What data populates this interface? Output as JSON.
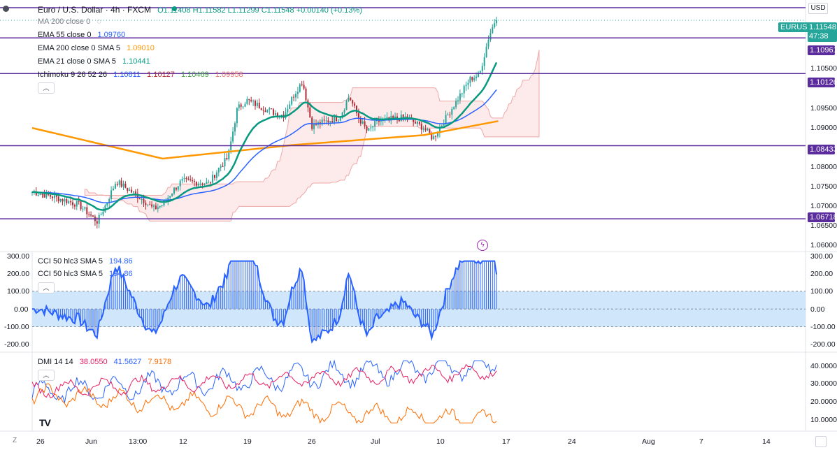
{
  "header": {
    "symbol_title": "Euro / U.S. Dollar · 4h · FXCM",
    "ohlc": "O1.11408 H1.11582 L1.11299 C1.11548 +0.00140 (+0.13%)",
    "currency": "USD"
  },
  "indicators": {
    "ma200": "MA 200 close 0",
    "ema55_label": "EMA 55 close 0",
    "ema55_value": "1.09760",
    "ema200_label": "EMA 200 close 0 SMA 5",
    "ema200_value": "1.09010",
    "ema21_label": "EMA 21 close 0 SMA 5",
    "ema21_value": "1.10441",
    "ichimoku_label": "Ichimoku 9 26 52 26",
    "ichimoku_values": [
      "1.10811",
      "1.10127",
      "1.10469",
      "1.09958"
    ],
    "cci_label_1": "CCI 50 hlc3 SMA 5",
    "cci_value_1": "194.86",
    "cci_label_2": "CCI 50 hlc3 SMA 5",
    "cci_value_2": "194.86",
    "dmi_label": "DMI 14 14",
    "dmi_values": [
      "38.0550",
      "41.5627",
      "7.9178"
    ]
  },
  "price_tags": {
    "symbol": "EURUSD",
    "last": "1.11548",
    "countdown": "47:38",
    "levels": [
      "1.10961",
      "1.10126",
      "1.08433",
      "1.06718"
    ]
  },
  "price_axis": [
    "1.10500",
    "1.10000",
    "1.09500",
    "1.09000",
    "1.08500",
    "1.08000",
    "1.07500",
    "1.07000",
    "1.06500",
    "1.06000"
  ],
  "cci_axis": [
    "300.00",
    "200.00",
    "100.00",
    "0.00",
    "-100.00",
    "-200.00"
  ],
  "dmi_axis": [
    "40.0000",
    "30.0000",
    "20.0000",
    "10.0000"
  ],
  "time_axis": [
    "26",
    "Jun",
    "13:00",
    "12",
    "19",
    "26",
    "Jul",
    "10",
    "17",
    "24",
    "Aug",
    "7",
    "14"
  ],
  "chart_data": {
    "type": "line",
    "title": "Euro / U.S. Dollar · 4h · FXCM",
    "y_unit": "USD",
    "horizontal_levels": [
      1.10961,
      1.10126,
      1.08433,
      1.06718
    ],
    "price_range": [
      1.0595,
      1.1185
    ],
    "close_path": [
      [
        "May 24",
        1.0735
      ],
      [
        "May 26",
        1.0725
      ],
      [
        "May 29",
        1.0705
      ],
      [
        "May 31",
        1.0665
      ],
      [
        "Jun 1",
        1.071
      ],
      [
        "Jun 2",
        1.076
      ],
      [
        "Jun 5",
        1.0715
      ],
      [
        "Jun 6",
        1.0695
      ],
      [
        "Jun 7",
        1.0705
      ],
      [
        "Jun 8",
        1.0735
      ],
      [
        "Jun 9",
        1.076
      ],
      [
        "Jun 12",
        1.0755
      ],
      [
        "Jun 13",
        1.079
      ],
      [
        "Jun 14",
        1.0815
      ],
      [
        "Jun 15",
        1.093
      ],
      [
        "Jun 16",
        1.095
      ],
      [
        "Jun 19",
        1.092
      ],
      [
        "Jun 20",
        1.0915
      ],
      [
        "Jun 21",
        1.096
      ],
      [
        "Jun 22",
        1.0995
      ],
      [
        "Jun 23",
        1.089
      ],
      [
        "Jun 26",
        1.091
      ],
      [
        "Jun 27",
        1.096
      ],
      [
        "Jun 28",
        1.091
      ],
      [
        "Jun 29",
        1.0875
      ],
      [
        "Jun 30",
        1.09
      ],
      [
        "Jul 3",
        1.091
      ],
      [
        "Jul 5",
        1.0885
      ],
      [
        "Jul 6",
        1.086
      ],
      [
        "Jul 7",
        1.0895
      ],
      [
        "Jul 10",
        1.1
      ],
      [
        "Jul 11",
        1.101
      ],
      [
        "Jul 12",
        1.11
      ],
      [
        "Jul 13",
        1.1155
      ]
    ],
    "ema200_path": [
      [
        "May 24",
        1.0885
      ],
      [
        "Jun 7",
        1.0813
      ],
      [
        "Jun 21",
        1.0845
      ],
      [
        "Jul 5",
        1.0868
      ],
      [
        "Jul 13",
        1.0901
      ]
    ],
    "cci": {
      "last": 194.86,
      "band": [
        -100,
        100
      ],
      "range": [
        -200,
        300
      ]
    },
    "dmi": {
      "adx": 38.055,
      "plus_di": 41.5627,
      "minus_di": 7.9178
    }
  },
  "colors": {
    "bull": "#26a69a",
    "bear": "#b22833",
    "ema200": "#ff9800",
    "ema55": "#2962ff",
    "ema21": "#089981",
    "level": "#5b2c9e",
    "cci": "#2962ff",
    "cci_band": "#cfe6fb",
    "dmi_plus": "#2962ff",
    "dmi_minus": "#ff6d00",
    "adx": "#e91e63"
  }
}
